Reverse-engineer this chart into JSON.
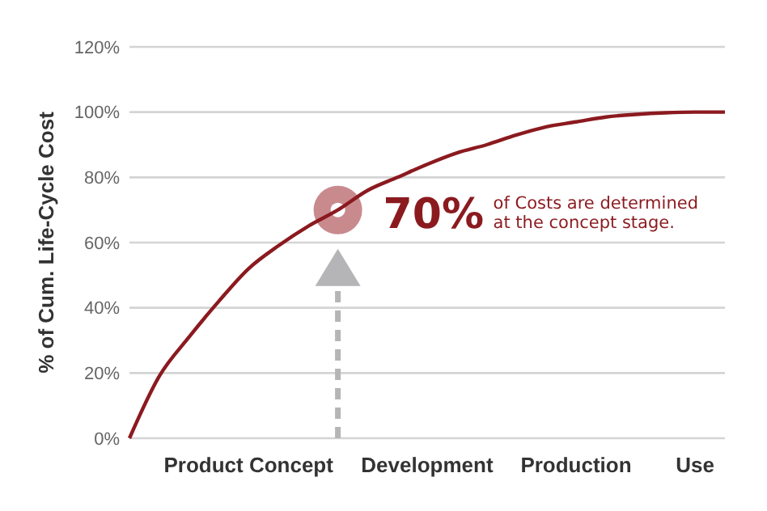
{
  "chart_data": {
    "type": "line",
    "ylabel": "% of Cum. Life-Cycle Cost",
    "categories": [
      null,
      null,
      null,
      null,
      "Product Concept",
      null,
      null,
      null,
      null,
      null,
      "Development",
      null,
      null,
      null,
      null,
      "Production",
      null,
      null,
      null,
      "Use",
      null
    ],
    "ylim": [
      0,
      120
    ],
    "yticks": [
      {
        "value": 0,
        "label": "0%"
      },
      {
        "value": 20,
        "label": "20%"
      },
      {
        "value": 40,
        "label": "40%"
      },
      {
        "value": 60,
        "label": "60%"
      },
      {
        "value": 80,
        "label": "80%"
      },
      {
        "value": 100,
        "label": "100%"
      },
      {
        "value": 120,
        "label": "120%"
      }
    ],
    "grid": "y",
    "marker": "none",
    "line_style": "solid",
    "series": [
      {
        "color": "#8b1a1f",
        "values": [
          0,
          19,
          31,
          42,
          52,
          59,
          65,
          70,
          76,
          80,
          84,
          87.5,
          90,
          93,
          95.5,
          97,
          98.5,
          99.3,
          99.8,
          100,
          100
        ]
      }
    ],
    "annotations": [
      "70% of Costs are determined at the concept stage."
    ]
  }
}
